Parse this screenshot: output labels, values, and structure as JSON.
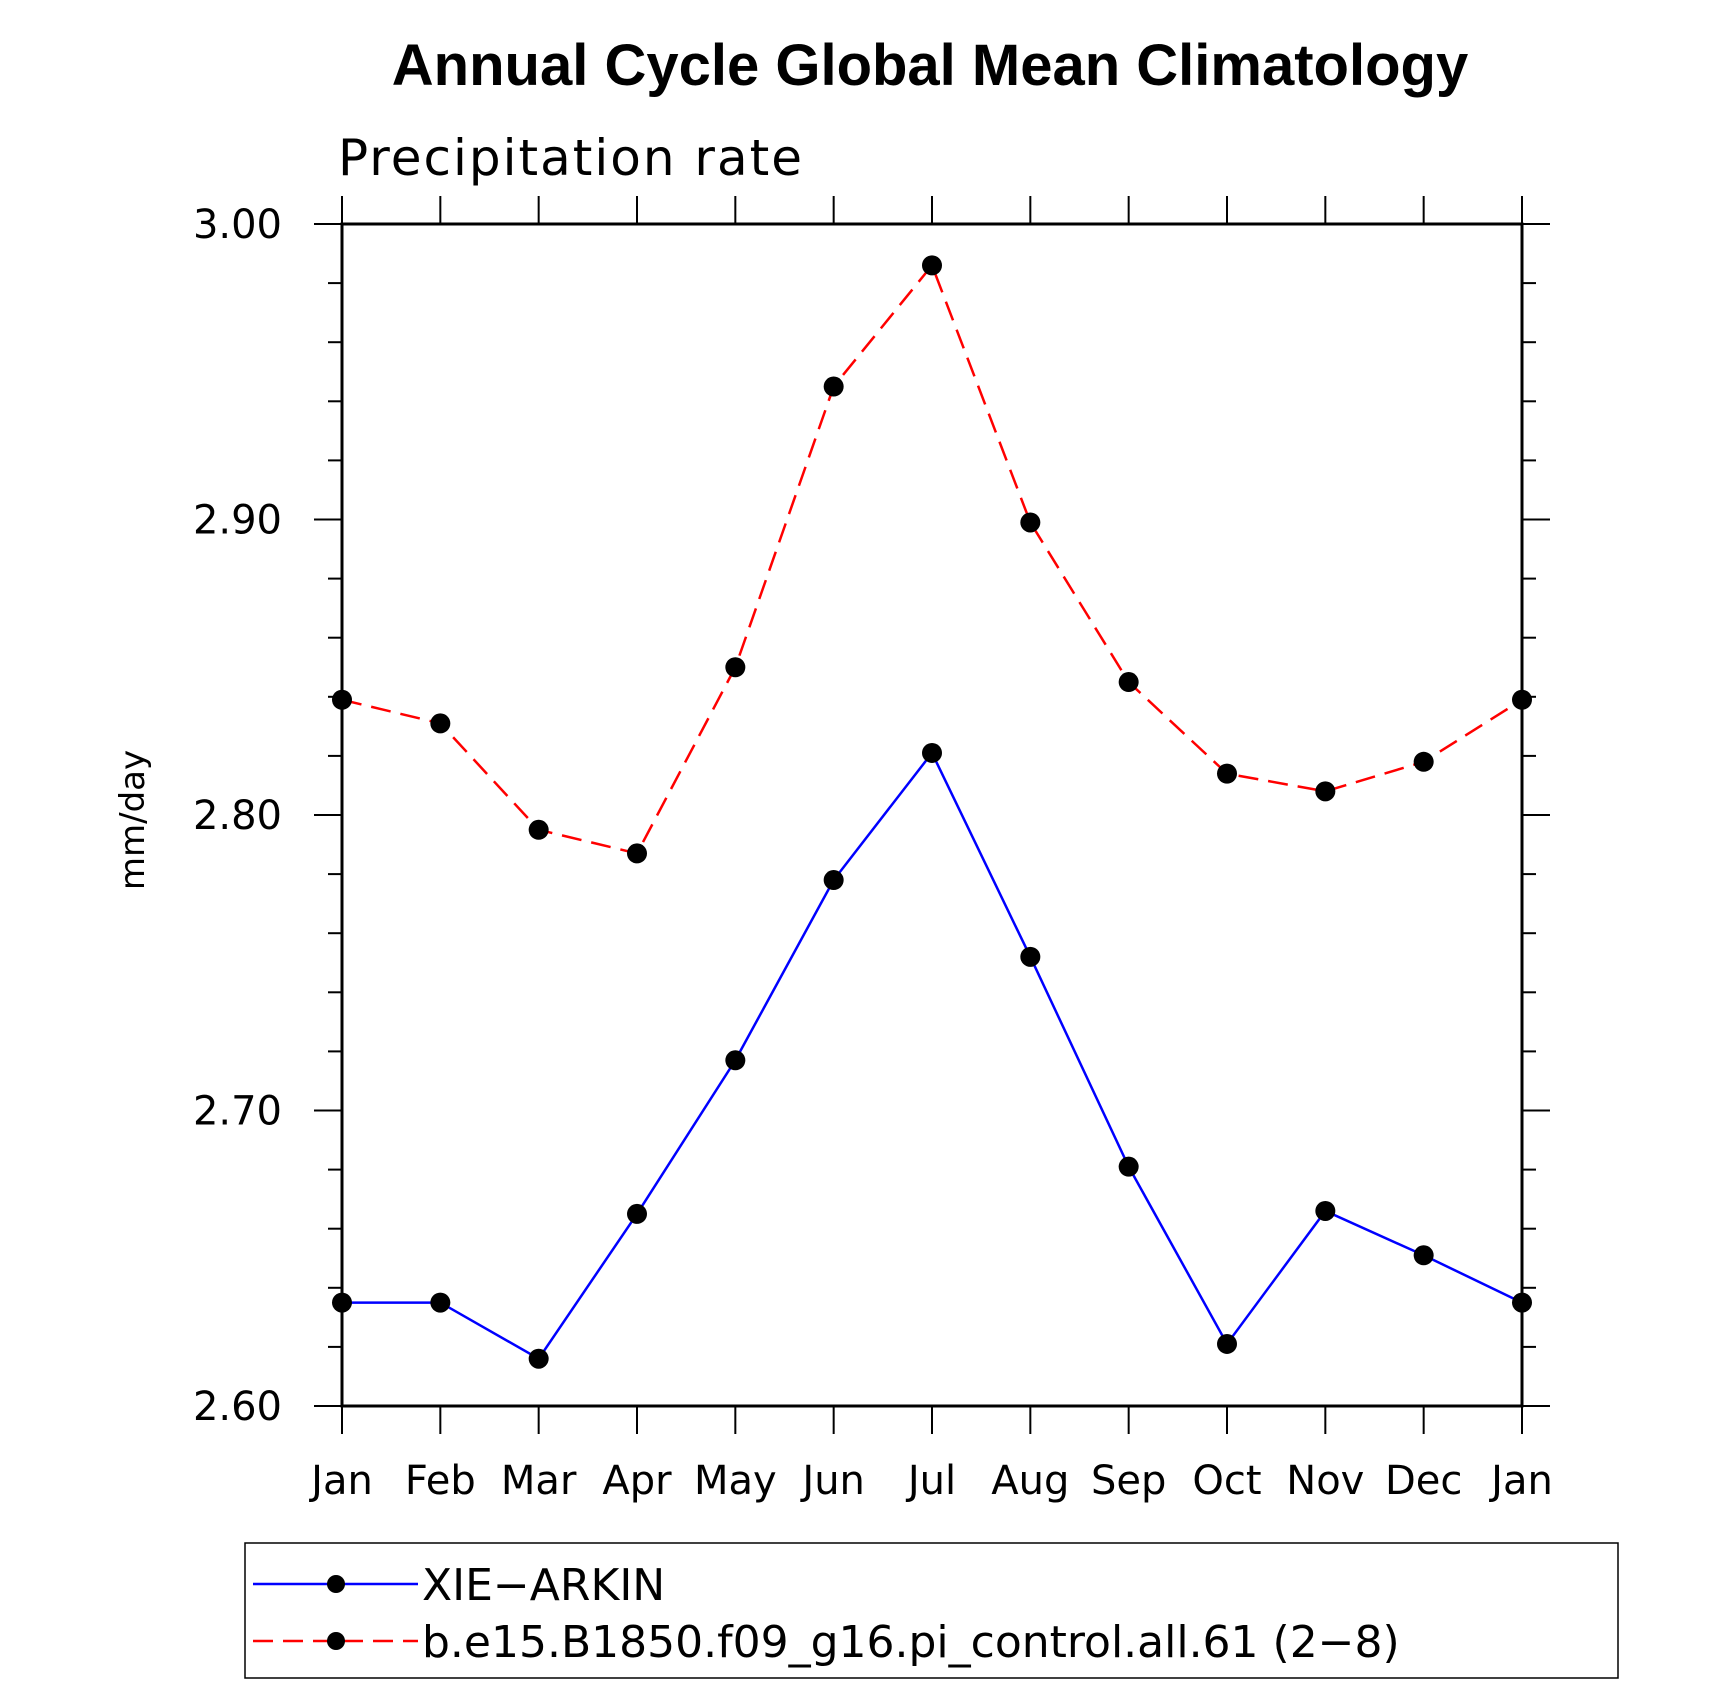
{
  "chart_data": {
    "type": "line",
    "title": "Annual Cycle Global Mean Climatology",
    "subtitle": "Precipitation rate",
    "xlabel": "",
    "ylabel": "mm/day",
    "categories": [
      "Jan",
      "Feb",
      "Mar",
      "Apr",
      "May",
      "Jun",
      "Jul",
      "Aug",
      "Sep",
      "Oct",
      "Nov",
      "Dec",
      "Jan"
    ],
    "ylim": [
      2.6,
      3.0
    ],
    "yticks": [
      2.6,
      2.7,
      2.8,
      2.9,
      3.0
    ],
    "ytick_labels": [
      "2.60",
      "2.70",
      "2.80",
      "2.90",
      "3.00"
    ],
    "yminor_step": 0.02,
    "grid": false,
    "legend_position": "bottom",
    "series": [
      {
        "name": "XIE−ARKIN",
        "color": "#0000ff",
        "line_style": "solid",
        "marker": "filled-circle",
        "values": [
          2.635,
          2.635,
          2.616,
          2.665,
          2.717,
          2.778,
          2.821,
          2.752,
          2.681,
          2.621,
          2.666,
          2.651,
          2.635
        ]
      },
      {
        "name": "b.e15.B1850.f09_g16.pi_control.all.61 (2−8)",
        "color": "#ff0000",
        "line_style": "dashed",
        "marker": "filled-circle",
        "values": [
          2.839,
          2.831,
          2.795,
          2.787,
          2.85,
          2.945,
          2.986,
          2.899,
          2.845,
          2.814,
          2.808,
          2.818,
          2.839
        ]
      }
    ]
  }
}
